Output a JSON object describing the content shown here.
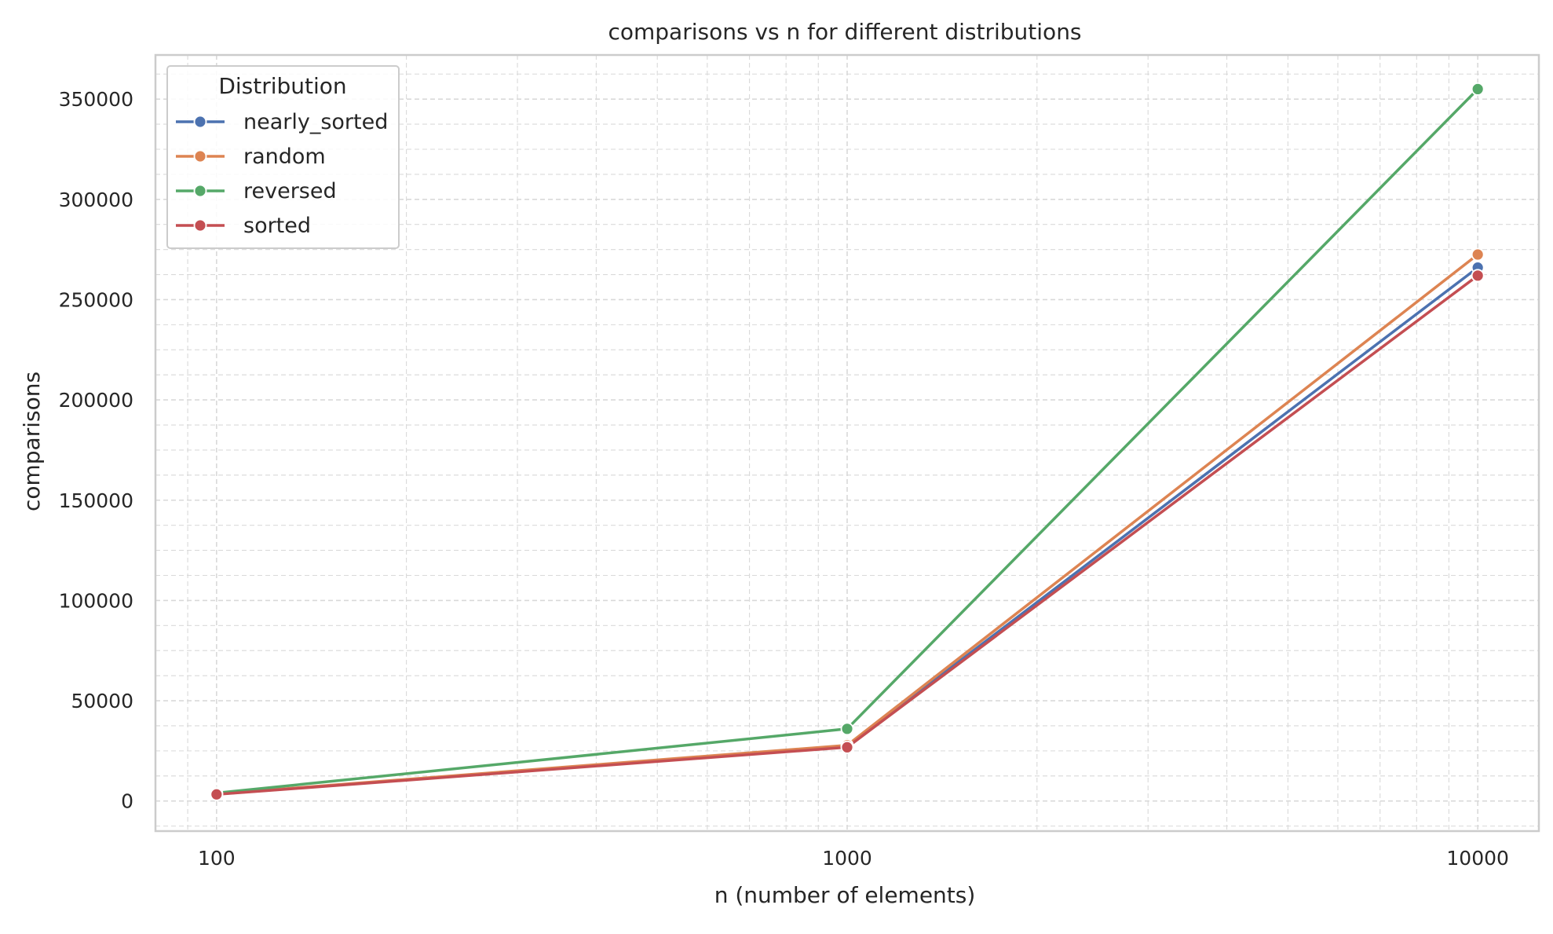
{
  "chart_data": {
    "type": "line",
    "title": "comparisons vs n for different distributions",
    "xlabel": "n (number of elements)",
    "ylabel": "comparisons",
    "x": [
      100,
      1000,
      10000
    ],
    "x_scale": "log",
    "x_ticks": [
      "100",
      "1000",
      "10000"
    ],
    "y_ticks": [
      "0",
      "50000",
      "100000",
      "150000",
      "200000",
      "250000",
      "300000",
      "350000"
    ],
    "xlim": [
      80,
      12500
    ],
    "ylim": [
      -15000,
      372000
    ],
    "grid": true,
    "legend": {
      "title": "Distribution",
      "placement": "top-left"
    },
    "series": [
      {
        "name": "nearly_sorted",
        "color": "#4c72b0",
        "values": [
          3400,
          27200,
          266000
        ]
      },
      {
        "name": "random",
        "color": "#dd8452",
        "values": [
          3500,
          27800,
          272500
        ]
      },
      {
        "name": "reversed",
        "color": "#55a868",
        "values": [
          4000,
          36000,
          355000
        ]
      },
      {
        "name": "sorted",
        "color": "#c44e52",
        "values": [
          3300,
          26800,
          262000
        ]
      }
    ]
  }
}
